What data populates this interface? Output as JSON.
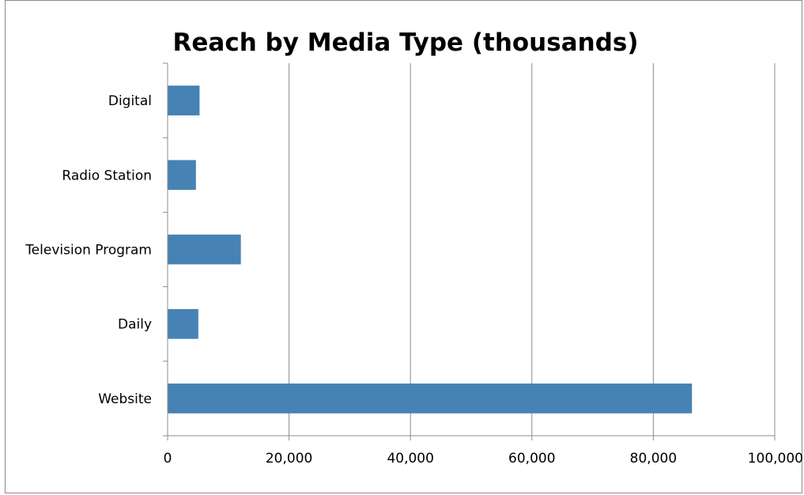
{
  "chart_data": {
    "type": "bar",
    "orientation": "horizontal",
    "title": "Reach by Media Type (thousands)",
    "xlabel": "",
    "ylabel": "",
    "categories": [
      "Website",
      "Daily",
      "Television Program",
      "Radio Station",
      "Digital"
    ],
    "values": [
      86300,
      5000,
      12000,
      4600,
      5200
    ],
    "xlim": [
      0,
      100000
    ],
    "xticks": [
      0,
      20000,
      40000,
      60000,
      80000,
      100000
    ],
    "xtick_labels": [
      "0",
      "20,000",
      "40,000",
      "60,000",
      "80,000",
      "100,000"
    ],
    "grid": true,
    "legend": "none",
    "bar_color": "#4682b4"
  }
}
